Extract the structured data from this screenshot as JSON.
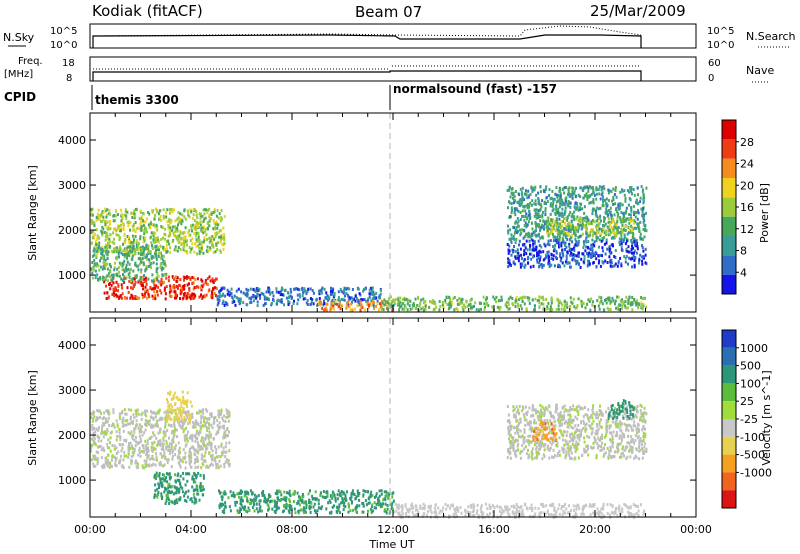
{
  "header": {
    "radar": "Kodiak (fitACF)",
    "beam": "Beam 07",
    "date": "25/Mar/2009"
  },
  "aux_panels": {
    "nsky_label": "N.Sky",
    "nsearch_label": "N.Search",
    "freq_label_1": "Freq.",
    "freq_label_2": "[MHz]",
    "nave_label": "Nave",
    "cpid_label": "CPID",
    "noise_ticks_left": [
      "10^5",
      "10^0"
    ],
    "noise_ticks_right": [
      "10^5",
      "10^0"
    ],
    "freq_ticks": [
      "18",
      "8"
    ],
    "nave_ticks": [
      "60",
      "0"
    ]
  },
  "modes": [
    {
      "name": "themis 3300"
    },
    {
      "name": "normalsound (fast) -157"
    }
  ],
  "colors": {
    "power_scale": [
      "#1414e6",
      "#2f6ec8",
      "#3a9c96",
      "#47a85a",
      "#9ccb3c",
      "#f0d21e",
      "#f58c1e",
      "#f03c14",
      "#dc0000"
    ],
    "velocity_scale": [
      "#1e3cc8",
      "#2a6eb4",
      "#2e9678",
      "#5abe3c",
      "#a0dc3c",
      "#c8c8c8",
      "#e6d250",
      "#f5a01e",
      "#f0641e",
      "#dc1414"
    ],
    "ground_scatter": "#bebebe",
    "marker_line": "#b4b4b4"
  },
  "chart_data": [
    {
      "type": "heatmap",
      "title": "",
      "parameter": "power",
      "xlabel": "Time UT",
      "ylabel": "Slant Range [km]",
      "xlim": [
        "00:00",
        "24:00"
      ],
      "ylim": [
        180,
        4600
      ],
      "y_ticks": [
        "1000",
        "2000",
        "3000",
        "4000"
      ],
      "colorbar": {
        "label": "Power [dB]",
        "range": [
          0,
          32
        ],
        "ticks": [
          "4",
          "8",
          "12",
          "16",
          "20",
          "24",
          "28"
        ]
      },
      "mode_change_time": "12:00",
      "regions": [
        {
          "t0": 0.0,
          "t1": 5.3,
          "r0": 1500,
          "r1": 2500,
          "value": 16
        },
        {
          "t0": 0.5,
          "t1": 5.0,
          "r0": 500,
          "r1": 1000,
          "value": 28
        },
        {
          "t0": 0.0,
          "t1": 3.0,
          "r0": 900,
          "r1": 1700,
          "value": 12
        },
        {
          "t0": 5.0,
          "t1": 11.5,
          "r0": 350,
          "r1": 750,
          "value": 6
        },
        {
          "t0": 9.0,
          "t1": 12.0,
          "r0": 250,
          "r1": 450,
          "value": 22
        },
        {
          "t0": 11.5,
          "t1": 22.0,
          "r0": 250,
          "r1": 550,
          "value": 14
        },
        {
          "t0": 16.5,
          "t1": 22.0,
          "r0": 1800,
          "r1": 3000,
          "value": 10
        },
        {
          "t0": 18.0,
          "t1": 21.5,
          "r0": 1900,
          "r1": 2300,
          "value": 16
        },
        {
          "t0": 16.5,
          "t1": 22.0,
          "r0": 1200,
          "r1": 1800,
          "value": 4
        }
      ]
    },
    {
      "type": "heatmap",
      "title": "",
      "parameter": "velocity",
      "xlabel": "Time UT",
      "ylabel": "Slant Range [km]",
      "xlim": [
        "00:00",
        "24:00"
      ],
      "ylim": [
        180,
        4600
      ],
      "x_ticks": [
        "00:00",
        "04:00",
        "08:00",
        "12:00",
        "16:00",
        "20:00",
        "00:00"
      ],
      "y_ticks": [
        "1000",
        "2000",
        "3000",
        "4000"
      ],
      "colorbar": {
        "label": "Velocity [m s^-1]",
        "ticks": [
          "1000",
          "500",
          "100",
          "25",
          "-25",
          "-100",
          "-500",
          "-1000"
        ]
      },
      "mode_change_time": "12:00",
      "regions": [
        {
          "t0": 0.0,
          "t1": 5.5,
          "r0": 1300,
          "r1": 2600,
          "value": 0
        },
        {
          "t0": 2.5,
          "t1": 4.5,
          "r0": 500,
          "r1": 1200,
          "value": 150
        },
        {
          "t0": 3.0,
          "t1": 4.0,
          "r0": 2300,
          "r1": 3000,
          "value": -200
        },
        {
          "t0": 5.0,
          "t1": 12.0,
          "r0": 300,
          "r1": 800,
          "value": 150
        },
        {
          "t0": 12.0,
          "t1": 22.0,
          "r0": 200,
          "r1": 500,
          "value": -50
        },
        {
          "t0": 16.5,
          "t1": 22.0,
          "r0": 1500,
          "r1": 2700,
          "value": 0
        },
        {
          "t0": 17.5,
          "t1": 18.5,
          "r0": 1900,
          "r1": 2300,
          "value": -800
        },
        {
          "t0": 20.5,
          "t1": 21.5,
          "r0": 2400,
          "r1": 2800,
          "value": 300
        }
      ]
    }
  ]
}
